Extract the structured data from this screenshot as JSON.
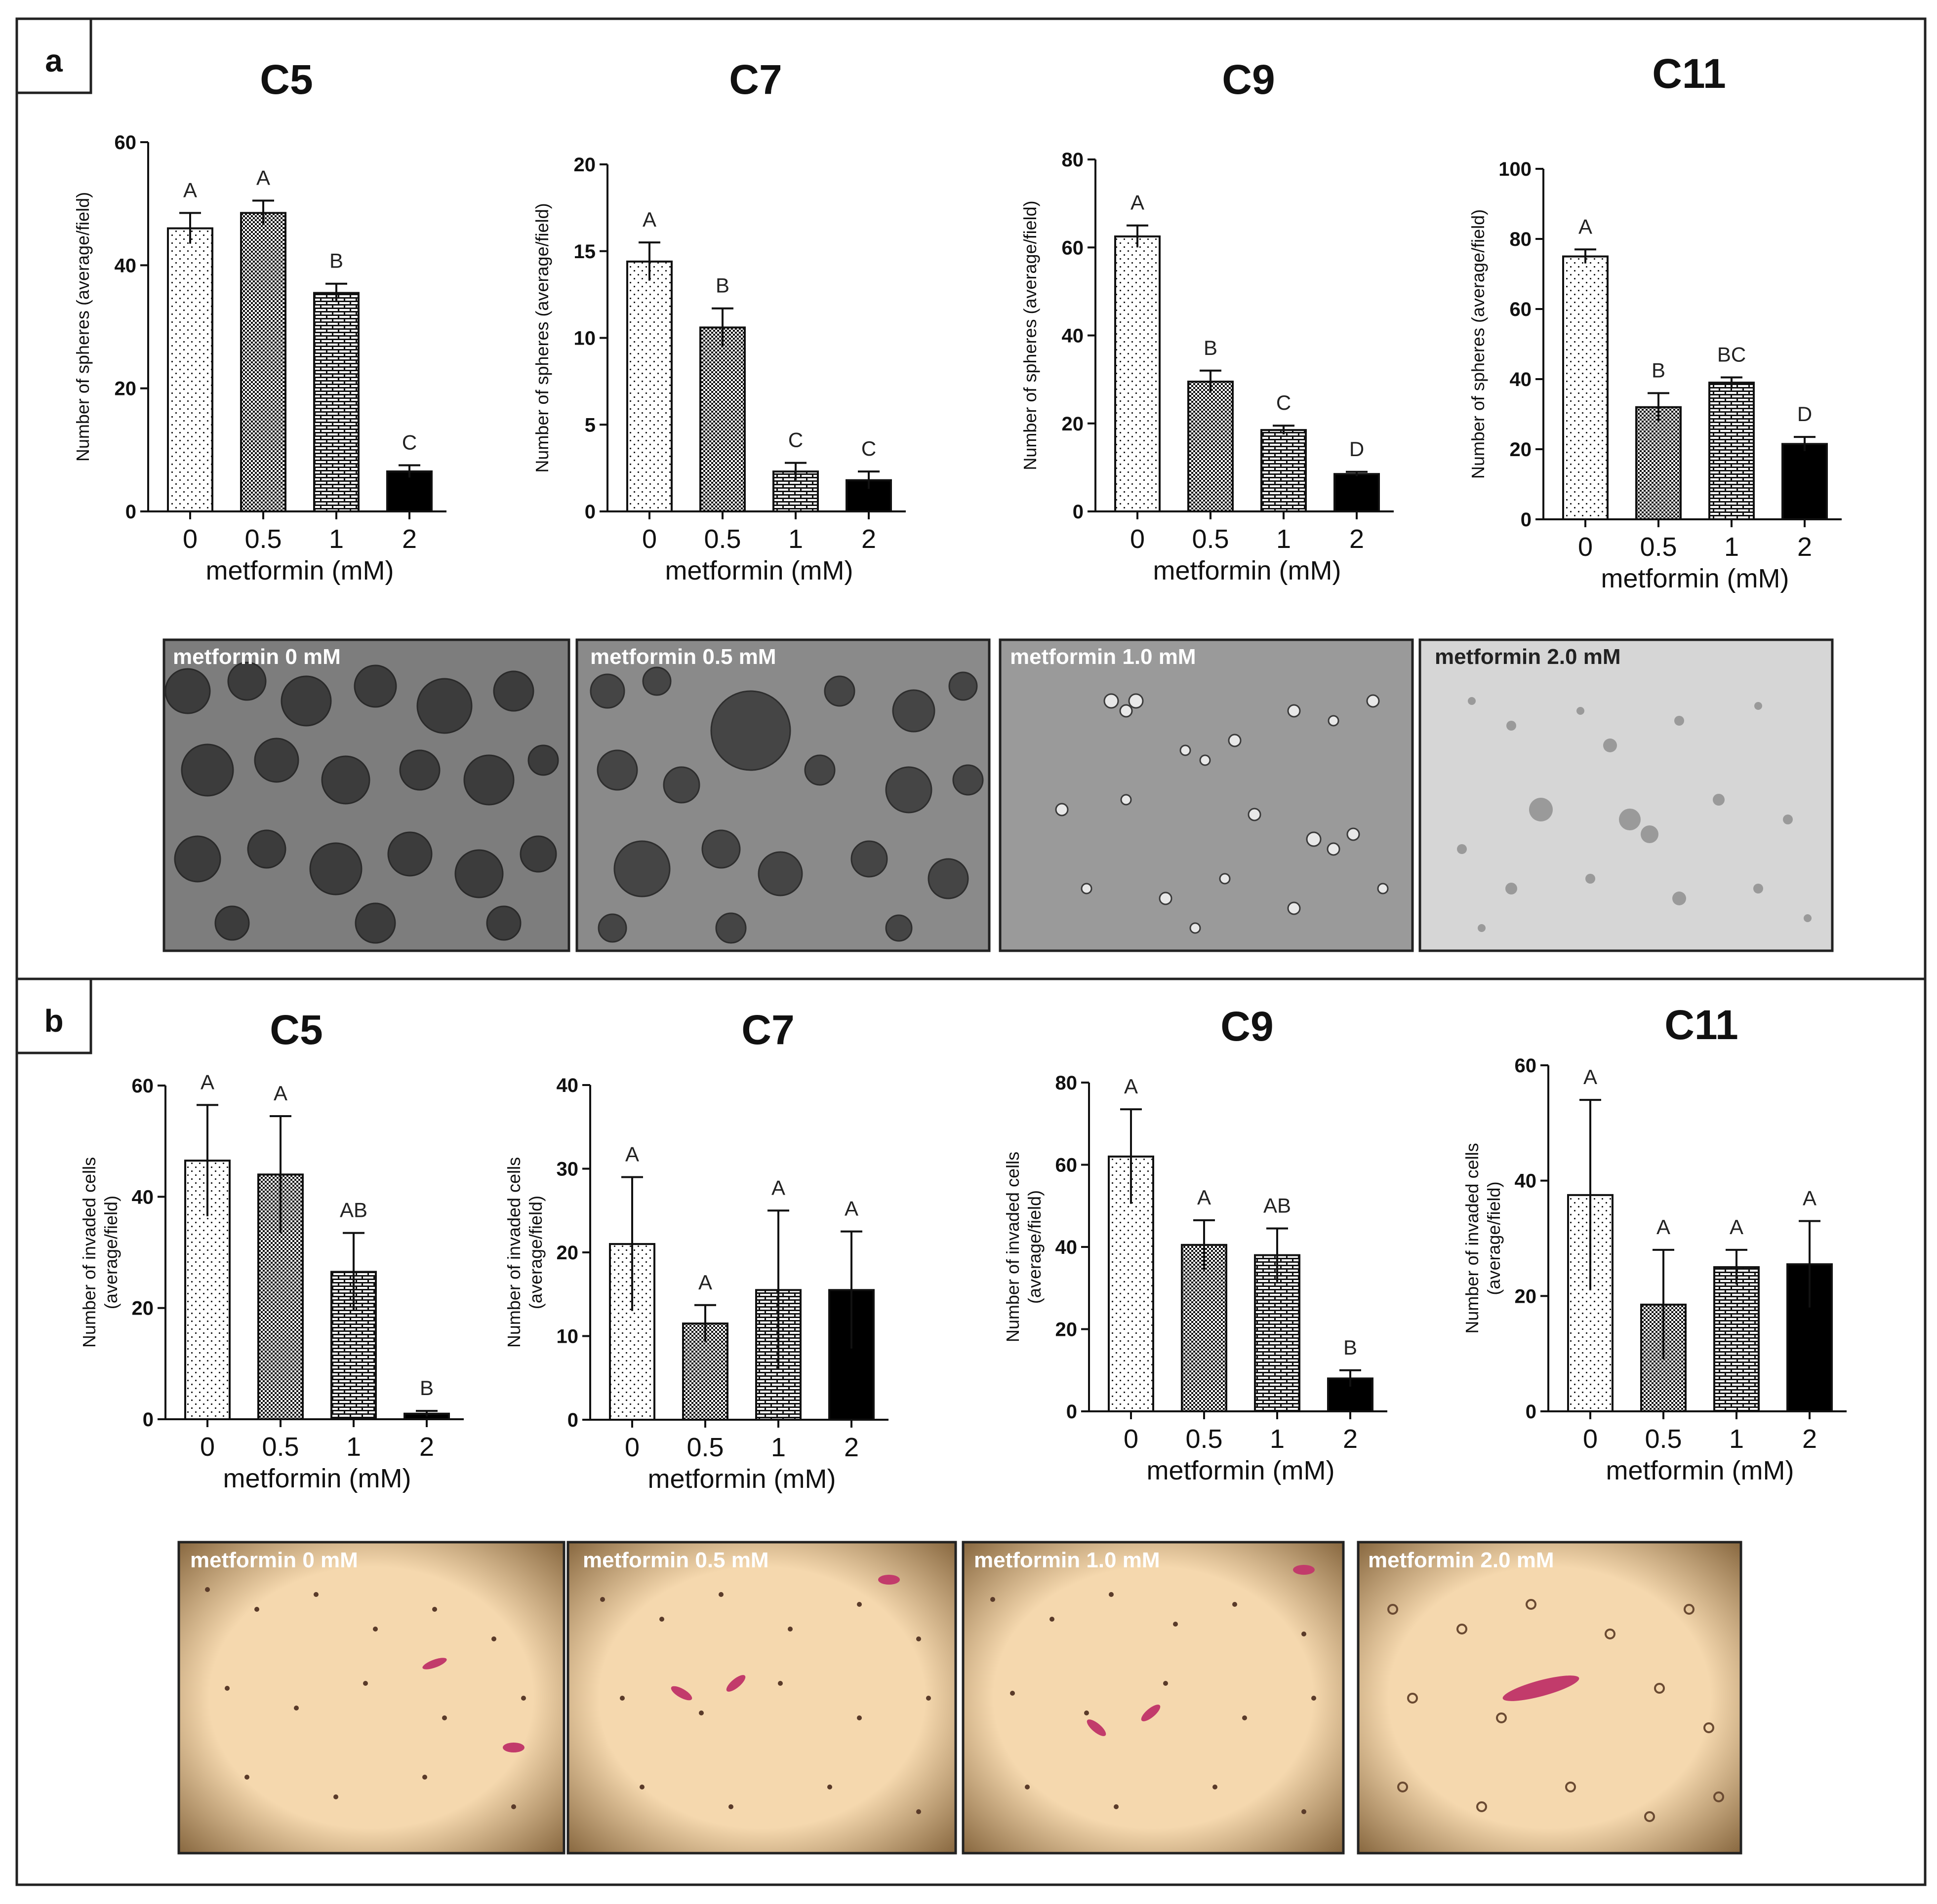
{
  "panels": [
    {
      "label": "a",
      "x_axis_title": "metformin (mM)",
      "y_axis_title": "Number of spheres (average/field)",
      "photo_labels": [
        "metformin 0 mM",
        "metformin 0.5 mM",
        "metformin 1.0 mM",
        "metformin 2.0 mM"
      ]
    },
    {
      "label": "b",
      "x_axis_title": "metformin (mM)",
      "y_axis_title_line1": "Number of invaded cells",
      "y_axis_title_line2": "(average/field)",
      "photo_labels": [
        "metformin 0 mM",
        "metformin 0.5 mM",
        "metformin 1.0 mM",
        "metformin 2.0 mM"
      ]
    }
  ],
  "colors": {
    "bar_fill_0": "#ffffff",
    "bar_fill_2": "#000000",
    "spheroid_bg_dark": "#8a8a8a",
    "spheroid_bg_light": "#d9d9d9",
    "invasion_bg": "#f3d2a6",
    "invaded_cell": "#c23b6b"
  },
  "chart_data": [
    {
      "panel": "a",
      "type": "bar",
      "title": "C5",
      "categories": [
        "0",
        "0.5",
        "1",
        "2"
      ],
      "values": [
        46,
        48.5,
        35.5,
        6.5
      ],
      "errors": [
        2.5,
        2,
        1.5,
        1
      ],
      "sig_letters": [
        "A",
        "A",
        "B",
        "C"
      ],
      "ylim": [
        0,
        60
      ],
      "yticks": [
        0,
        20,
        40,
        60
      ],
      "xlabel": "metformin (mM)",
      "ylabel": "Number of spheres (average/field)"
    },
    {
      "panel": "a",
      "type": "bar",
      "title": "C7",
      "categories": [
        "0",
        "0.5",
        "1",
        "2"
      ],
      "values": [
        14.4,
        10.6,
        2.3,
        1.8
      ],
      "errors": [
        1.1,
        1.1,
        0.5,
        0.5
      ],
      "sig_letters": [
        "A",
        "B",
        "C",
        "C"
      ],
      "ylim": [
        0,
        20
      ],
      "yticks": [
        0,
        5,
        10,
        15,
        20
      ],
      "xlabel": "metformin (mM)",
      "ylabel": "Number of spheres (average/field)"
    },
    {
      "panel": "a",
      "type": "bar",
      "title": "C9",
      "categories": [
        "0",
        "0.5",
        "1",
        "2"
      ],
      "values": [
        62.5,
        29.5,
        18.5,
        8.5
      ],
      "errors": [
        2.5,
        2.5,
        1,
        0.5
      ],
      "sig_letters": [
        "A",
        "B",
        "C",
        "D"
      ],
      "ylim": [
        0,
        80
      ],
      "yticks": [
        0,
        20,
        40,
        60,
        80
      ],
      "xlabel": "metformin (mM)",
      "ylabel": "Number of spheres (average/field)"
    },
    {
      "panel": "a",
      "type": "bar",
      "title": "C11",
      "categories": [
        "0",
        "0.5",
        "1",
        "2"
      ],
      "values": [
        75,
        32,
        39,
        21.5
      ],
      "errors": [
        2,
        4,
        1.5,
        2
      ],
      "sig_letters": [
        "A",
        "B",
        "BC",
        "D"
      ],
      "ylim": [
        0,
        100
      ],
      "yticks": [
        0,
        20,
        40,
        60,
        80,
        100
      ],
      "xlabel": "metformin (mM)",
      "ylabel": "Number of spheres (average/field)"
    },
    {
      "panel": "b",
      "type": "bar",
      "title": "C5",
      "categories": [
        "0",
        "0.5",
        "1",
        "2"
      ],
      "values": [
        46.5,
        44,
        26.5,
        1
      ],
      "errors": [
        10,
        10.5,
        7,
        0.5
      ],
      "sig_letters": [
        "A",
        "A",
        "AB",
        "B"
      ],
      "ylim": [
        0,
        60
      ],
      "yticks": [
        0,
        20,
        40,
        60
      ],
      "xlabel": "metformin (mM)",
      "ylabel": "Number of invaded cells (average/field)"
    },
    {
      "panel": "b",
      "type": "bar",
      "title": "C7",
      "categories": [
        "0",
        "0.5",
        "1",
        "2"
      ],
      "values": [
        21,
        11.5,
        15.5,
        15.5
      ],
      "errors": [
        8,
        2.2,
        9.5,
        7
      ],
      "sig_letters": [
        "A",
        "A",
        "A",
        "A"
      ],
      "ylim": [
        0,
        40
      ],
      "yticks": [
        0,
        10,
        20,
        30,
        40
      ],
      "xlabel": "metformin (mM)",
      "ylabel": "Number of invaded cells (average/field)"
    },
    {
      "panel": "b",
      "type": "bar",
      "title": "C9",
      "categories": [
        "0",
        "0.5",
        "1",
        "2"
      ],
      "values": [
        62,
        40.5,
        38,
        8
      ],
      "errors": [
        11.5,
        6,
        6.5,
        2
      ],
      "sig_letters": [
        "A",
        "A",
        "AB",
        "B"
      ],
      "ylim": [
        0,
        80
      ],
      "yticks": [
        0,
        20,
        40,
        60,
        80
      ],
      "xlabel": "metformin (mM)",
      "ylabel": "Number of invaded cells (average/field)"
    },
    {
      "panel": "b",
      "type": "bar",
      "title": "C11",
      "categories": [
        "0",
        "0.5",
        "1",
        "2"
      ],
      "values": [
        37.5,
        18.5,
        25,
        25.5
      ],
      "errors": [
        16.5,
        9.5,
        3,
        7.5
      ],
      "sig_letters": [
        "A",
        "A",
        "A",
        "A"
      ],
      "ylim": [
        0,
        60
      ],
      "yticks": [
        0,
        20,
        40,
        60
      ],
      "xlabel": "metformin (mM)",
      "ylabel": "Number of invaded cells (average/field)"
    }
  ]
}
